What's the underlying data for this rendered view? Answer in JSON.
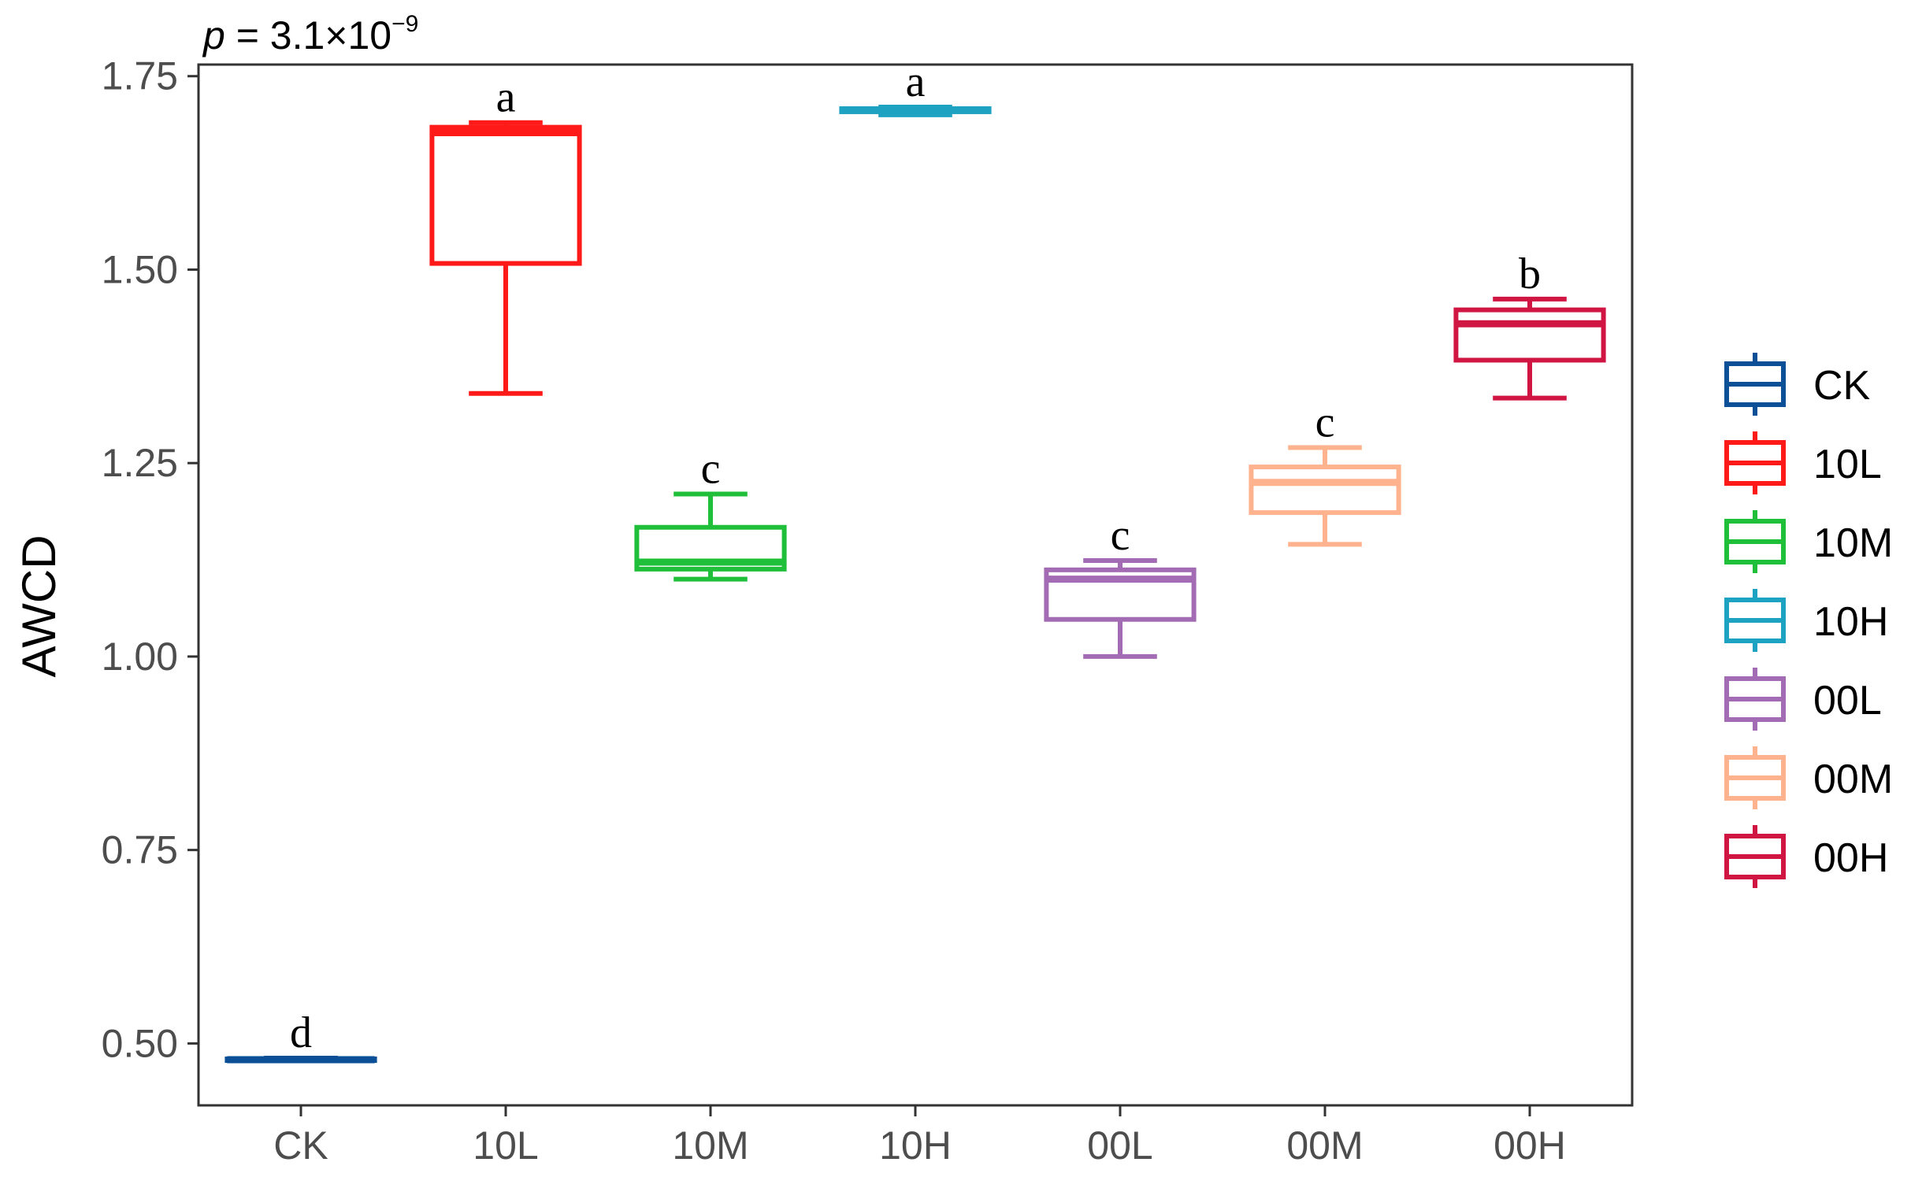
{
  "chart_data": {
    "type": "boxplot",
    "title": "",
    "annotation": {
      "p_label": "p",
      "p_equals": " = 3.1×10",
      "p_exponent": "−9"
    },
    "xlabel": "",
    "ylabel": "AWCD",
    "ylim": [
      0.42,
      1.765
    ],
    "yticks": [
      0.5,
      0.75,
      1.0,
      1.25,
      1.5,
      1.75
    ],
    "ytick_labels": [
      "0.50",
      "0.75",
      "1.00",
      "1.25",
      "1.50",
      "1.75"
    ],
    "categories": [
      "CK",
      "10L",
      "10M",
      "10H",
      "00L",
      "00M",
      "00H"
    ],
    "groups": [
      {
        "name": "CK",
        "color": "#0b4f96",
        "min": 0.478,
        "q1": 0.478,
        "median": 0.479,
        "q3": 0.48,
        "max": 0.481,
        "letter": "d"
      },
      {
        "name": "10L",
        "color": "#ff1a1a",
        "min": 1.34,
        "q1": 1.508,
        "median": 1.677,
        "q3": 1.684,
        "max": 1.69,
        "letter": "a"
      },
      {
        "name": "10M",
        "color": "#1fbf3a",
        "min": 1.1,
        "q1": 1.113,
        "median": 1.122,
        "q3": 1.167,
        "max": 1.21,
        "letter": "c"
      },
      {
        "name": "10H",
        "color": "#1ea2c2",
        "min": 1.7,
        "q1": 1.704,
        "median": 1.706,
        "q3": 1.708,
        "max": 1.71,
        "letter": "a"
      },
      {
        "name": "00L",
        "color": "#a46bb5",
        "min": 1.0,
        "q1": 1.048,
        "median": 1.1,
        "q3": 1.112,
        "max": 1.124,
        "letter": "c"
      },
      {
        "name": "00M",
        "color": "#ffb28e",
        "min": 1.145,
        "q1": 1.186,
        "median": 1.225,
        "q3": 1.245,
        "max": 1.27,
        "letter": "c"
      },
      {
        "name": "00H",
        "color": "#d11543",
        "min": 1.334,
        "q1": 1.383,
        "median": 1.43,
        "q3": 1.448,
        "max": 1.462,
        "letter": "b"
      }
    ],
    "legend": {
      "position": "right",
      "entries": [
        "CK",
        "10L",
        "10M",
        "10H",
        "00L",
        "00M",
        "00H"
      ]
    },
    "grid": false
  }
}
